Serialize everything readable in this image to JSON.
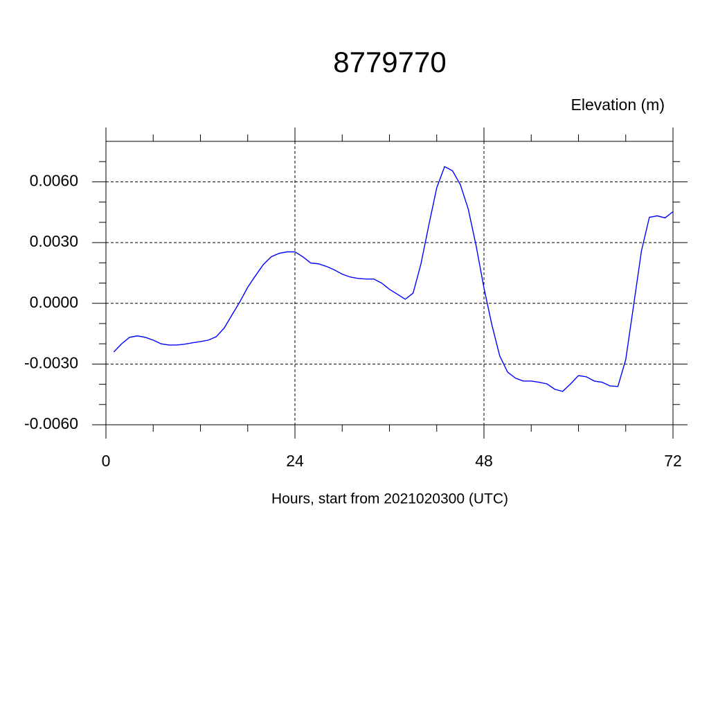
{
  "chart_data": {
    "type": "line",
    "title": "8779770",
    "y_axis_label": "Elevation (m)",
    "x_axis_label": "Hours, start from 2021020300 (UTC)",
    "x": [
      1,
      2,
      3,
      4,
      5,
      6,
      7,
      8,
      9,
      10,
      11,
      12,
      13,
      14,
      15,
      16,
      17,
      18,
      19,
      20,
      21,
      22,
      23,
      24,
      25,
      26,
      27,
      28,
      29,
      30,
      31,
      32,
      33,
      34,
      35,
      36,
      37,
      38,
      39,
      40,
      41,
      42,
      43,
      44,
      45,
      46,
      47,
      48,
      49,
      50,
      51,
      52,
      53,
      54,
      55,
      56,
      57,
      58,
      59,
      60,
      61,
      62,
      63,
      64,
      65,
      66,
      67,
      68,
      69,
      70,
      71,
      72
    ],
    "values": [
      -0.0024,
      -0.002,
      -0.00168,
      -0.00161,
      -0.00168,
      -0.00182,
      -0.002,
      -0.00206,
      -0.00206,
      -0.00202,
      -0.00195,
      -0.00189,
      -0.00182,
      -0.00165,
      -0.00123,
      -0.00058,
      7e-05,
      0.00079,
      0.00137,
      0.00192,
      0.0023,
      0.00247,
      0.00254,
      0.00254,
      0.0023,
      0.00199,
      0.00195,
      0.00182,
      0.00165,
      0.00144,
      0.0013,
      0.00123,
      0.0012,
      0.0012,
      0.001,
      0.00069,
      0.00045,
      0.0002,
      0.0005,
      0.00195,
      0.00387,
      0.0057,
      0.00675,
      0.00655,
      0.00586,
      0.00466,
      0.00285,
      0.00075,
      -0.00106,
      -0.0026,
      -0.0034,
      -0.0037,
      -0.00384,
      -0.00384,
      -0.0039,
      -0.00398,
      -0.00425,
      -0.00435,
      -0.00398,
      -0.00357,
      -0.00363,
      -0.00384,
      -0.0039,
      -0.00408,
      -0.00411,
      -0.00278,
      -0.0001,
      0.0026,
      0.00425,
      0.00432,
      0.00422,
      0.00453
    ],
    "color": "#0000ff",
    "xlim": [
      0,
      72
    ],
    "xticks": [
      0,
      24,
      48,
      72
    ],
    "x_minor_ticks": [
      6,
      12,
      18,
      30,
      36,
      42,
      54,
      60,
      66
    ],
    "ylim": [
      -0.006,
      0.008
    ],
    "yticks": [
      {
        "value": -0.006,
        "label": "-0.0060"
      },
      {
        "value": -0.003,
        "label": "-0.0030"
      },
      {
        "value": 0,
        "label": "0.0000"
      },
      {
        "value": 0.003,
        "label": "0.0030"
      },
      {
        "value": 0.006,
        "label": "0.0060"
      }
    ],
    "y_minor_ticks": [
      -0.005,
      -0.004,
      -0.002,
      -0.001,
      0.001,
      0.002,
      0.004,
      0.005,
      0.007
    ],
    "grid": true
  }
}
